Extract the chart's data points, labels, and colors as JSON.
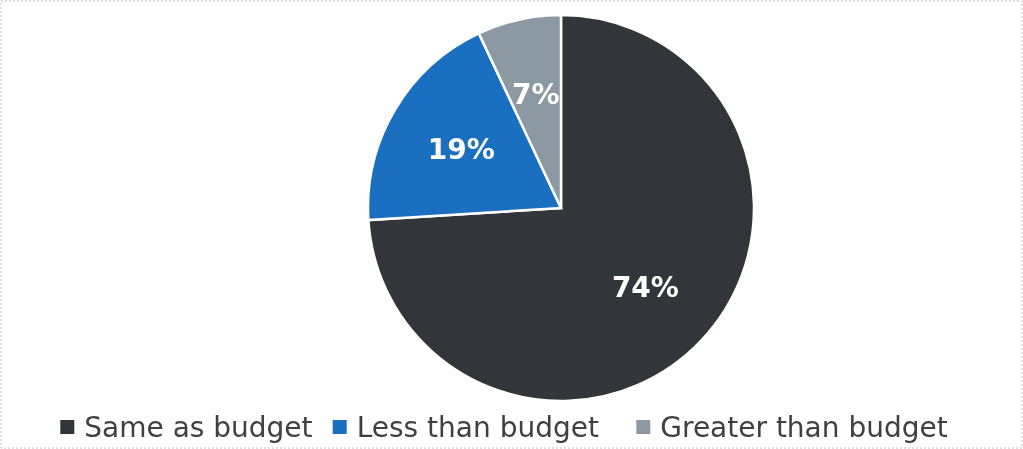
{
  "chart_data": {
    "type": "pie",
    "categories": [
      "Same as budget",
      "Less than budget",
      "Greater than budget"
    ],
    "values": [
      74,
      19,
      7
    ],
    "colors": [
      "#323539",
      "#1a6fc0",
      "#8c99a3"
    ],
    "value_labels": [
      "74%",
      "19%",
      "7%"
    ],
    "legend": "bottom"
  }
}
